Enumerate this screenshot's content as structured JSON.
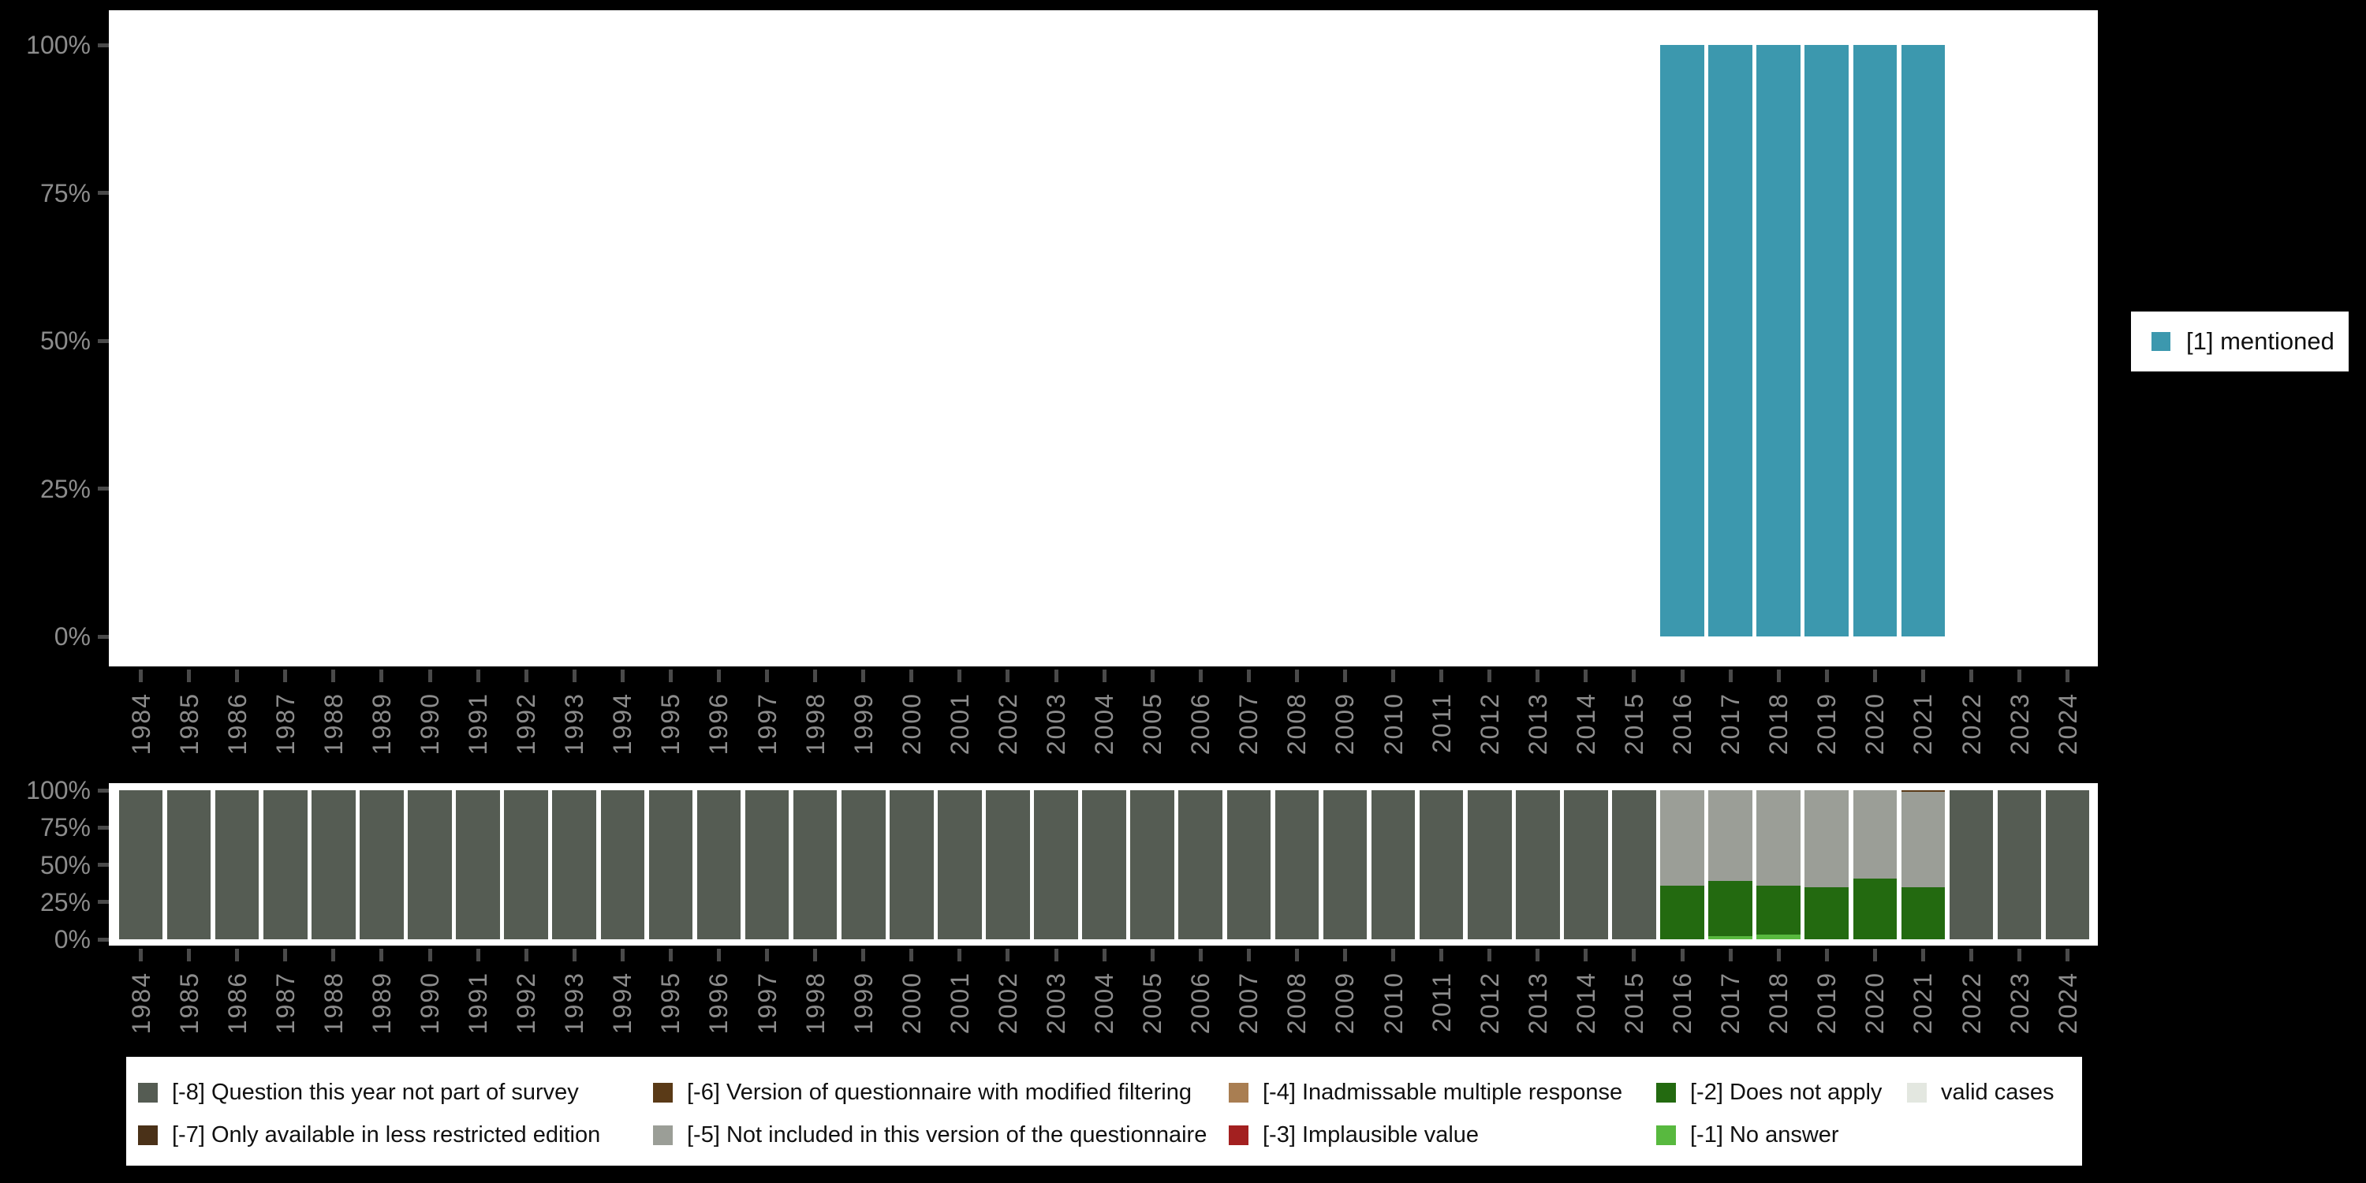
{
  "colors": {
    "mentioned": "#3c98ae",
    "m8": "#555c53",
    "m7": "#4a3118",
    "m6": "#5a3a17",
    "m5": "#9b9e97",
    "m4": "#a97e52",
    "m3": "#a32020",
    "m2": "#236a10",
    "m1": "#58b93f",
    "valid": "#e3e7e0",
    "axis_label": "#8c8c8c",
    "tick": "#4a4a4a",
    "background": "#000000",
    "plot_background": "#ffffff"
  },
  "legend_right": {
    "items": [
      {
        "key": "mentioned",
        "label": "[1] mentioned"
      }
    ]
  },
  "legend_bottom": {
    "columns": [
      {
        "items": [
          {
            "key": "m8",
            "label": "[-8] Question this year not part of survey"
          },
          {
            "key": "m7",
            "label": "[-7] Only available in less restricted edition"
          }
        ]
      },
      {
        "items": [
          {
            "key": "m6",
            "label": "[-6] Version of questionnaire with modified filtering"
          },
          {
            "key": "m5",
            "label": "[-5] Not included in this version of the questionnaire"
          }
        ]
      },
      {
        "items": [
          {
            "key": "m4",
            "label": "[-4] Inadmissable multiple response"
          },
          {
            "key": "m3",
            "label": "[-3] Implausible value"
          }
        ]
      },
      {
        "items": [
          {
            "key": "m2",
            "label": "[-2] Does not apply"
          },
          {
            "key": "m1",
            "label": "[-1] No answer"
          }
        ]
      },
      {
        "items": [
          {
            "key": "valid",
            "label": "valid cases"
          }
        ]
      }
    ]
  },
  "chart_data": [
    {
      "type": "bar",
      "stacked": true,
      "title": "",
      "xlabel": "",
      "ylabel": "",
      "ylim": [
        0,
        100
      ],
      "grid": false,
      "legend_position": "right",
      "y_tick_labels": [
        "100%",
        "75%",
        "50%",
        "25%",
        "0%"
      ],
      "x": [
        "1984",
        "1985",
        "1986",
        "1987",
        "1988",
        "1989",
        "1990",
        "1991",
        "1992",
        "1993",
        "1994",
        "1995",
        "1996",
        "1997",
        "1998",
        "1999",
        "2000",
        "2001",
        "2002",
        "2003",
        "2004",
        "2005",
        "2006",
        "2007",
        "2008",
        "2009",
        "2010",
        "2011",
        "2012",
        "2013",
        "2014",
        "2015",
        "2016",
        "2017",
        "2018",
        "2019",
        "2020",
        "2021",
        "2022",
        "2023",
        "2024"
      ],
      "series": [
        {
          "key": "mentioned",
          "name": "[1] mentioned",
          "values": [
            0,
            0,
            0,
            0,
            0,
            0,
            0,
            0,
            0,
            0,
            0,
            0,
            0,
            0,
            0,
            0,
            0,
            0,
            0,
            0,
            0,
            0,
            0,
            0,
            0,
            0,
            0,
            0,
            0,
            0,
            0,
            0,
            100,
            100,
            100,
            100,
            100,
            100,
            0,
            0,
            0
          ]
        }
      ]
    },
    {
      "type": "bar",
      "stacked": true,
      "title": "",
      "xlabel": "",
      "ylabel": "",
      "ylim": [
        0,
        100
      ],
      "grid": false,
      "legend_position": "bottom",
      "y_tick_labels": [
        "100%",
        "75%",
        "50%",
        "25%",
        "0%"
      ],
      "x": [
        "1984",
        "1985",
        "1986",
        "1987",
        "1988",
        "1989",
        "1990",
        "1991",
        "1992",
        "1993",
        "1994",
        "1995",
        "1996",
        "1997",
        "1998",
        "1999",
        "2000",
        "2001",
        "2002",
        "2003",
        "2004",
        "2005",
        "2006",
        "2007",
        "2008",
        "2009",
        "2010",
        "2011",
        "2012",
        "2013",
        "2014",
        "2015",
        "2016",
        "2017",
        "2018",
        "2019",
        "2020",
        "2021",
        "2022",
        "2023",
        "2024"
      ],
      "series": [
        {
          "key": "m1",
          "name": "[-1] No answer",
          "values": [
            0,
            0,
            0,
            0,
            0,
            0,
            0,
            0,
            0,
            0,
            0,
            0,
            0,
            0,
            0,
            0,
            0,
            0,
            0,
            0,
            0,
            0,
            0,
            0,
            0,
            0,
            0,
            0,
            0,
            0,
            0,
            0,
            0,
            2,
            3,
            0,
            0,
            0,
            0,
            0,
            0
          ]
        },
        {
          "key": "m2",
          "name": "[-2] Does not apply",
          "values": [
            0,
            0,
            0,
            0,
            0,
            0,
            0,
            0,
            0,
            0,
            0,
            0,
            0,
            0,
            0,
            0,
            0,
            0,
            0,
            0,
            0,
            0,
            0,
            0,
            0,
            0,
            0,
            0,
            0,
            0,
            0,
            0,
            36,
            37,
            33,
            35,
            41,
            35,
            0,
            0,
            0
          ]
        },
        {
          "key": "m5",
          "name": "[-5] Not included in this version of the questionnaire",
          "values": [
            0,
            0,
            0,
            0,
            0,
            0,
            0,
            0,
            0,
            0,
            0,
            0,
            0,
            0,
            0,
            0,
            0,
            0,
            0,
            0,
            0,
            0,
            0,
            0,
            0,
            0,
            0,
            0,
            0,
            0,
            0,
            0,
            64,
            61,
            64,
            65,
            59,
            64,
            0,
            0,
            0
          ]
        },
        {
          "key": "m6",
          "name": "[-6] Version of questionnaire with modified filtering",
          "values": [
            0,
            0,
            0,
            0,
            0,
            0,
            0,
            0,
            0,
            0,
            0,
            0,
            0,
            0,
            0,
            0,
            0,
            0,
            0,
            0,
            0,
            0,
            0,
            0,
            0,
            0,
            0,
            0,
            0,
            0,
            0,
            0,
            0,
            0,
            0,
            0,
            0,
            1,
            0,
            0,
            0
          ]
        },
        {
          "key": "m8",
          "name": "[-8] Question this year not part of survey",
          "values": [
            100,
            100,
            100,
            100,
            100,
            100,
            100,
            100,
            100,
            100,
            100,
            100,
            100,
            100,
            100,
            100,
            100,
            100,
            100,
            100,
            100,
            100,
            100,
            100,
            100,
            100,
            100,
            100,
            100,
            100,
            100,
            100,
            0,
            0,
            0,
            0,
            0,
            0,
            100,
            100,
            100
          ]
        }
      ]
    }
  ]
}
